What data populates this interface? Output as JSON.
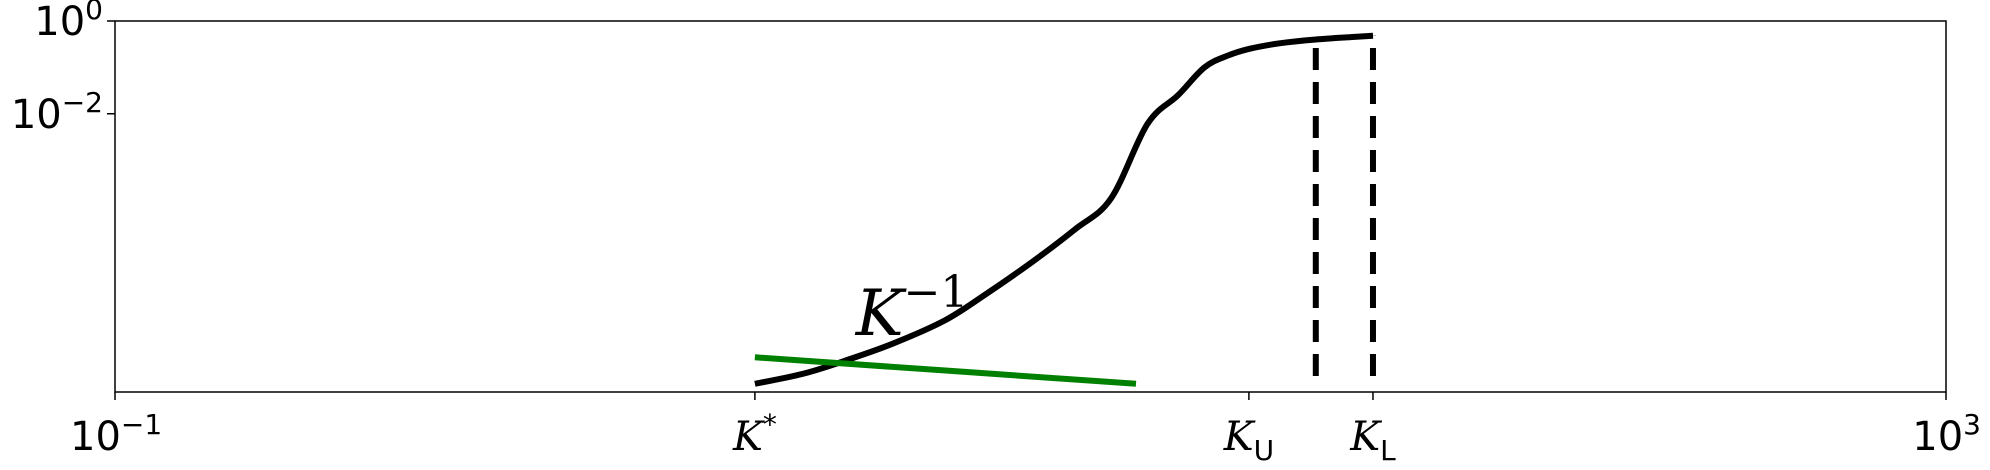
{
  "chart_data": {
    "type": "line",
    "title": "",
    "xlabel": "",
    "ylabel": "",
    "x_scale": "log",
    "y_scale": "log",
    "xlim": [
      0.1,
      1000
    ],
    "ylim": [
      1e-08,
      1
    ],
    "grid": false,
    "x_ticks": [
      {
        "value": 0.1,
        "base": "10",
        "sup": "−1"
      },
      {
        "value": 2.5,
        "base": "K",
        "sup": "*"
      },
      {
        "value": 30,
        "base": "K",
        "sub": "U"
      },
      {
        "value": 56,
        "base": "K",
        "sub": "L"
      },
      {
        "value": 1000,
        "base": "10",
        "sup": "3"
      }
    ],
    "y_ticks": [
      {
        "value": 1,
        "base": "10",
        "sup": "0"
      },
      {
        "value": 0.01,
        "base": "10",
        "sup": "−2"
      }
    ],
    "series": [
      {
        "color": "#000000",
        "style": "solid",
        "x": [
          2.5,
          3.2,
          4.0,
          5.0,
          6.5,
          8.0,
          10.0,
          12.5,
          15.0,
          18.0,
          21.0,
          24.0,
          27.0,
          30.0,
          35.0,
          42.0,
          50.0,
          56.0
        ],
        "y": [
          1.5e-08,
          2.5e-08,
          5e-08,
          1.1e-07,
          3.5e-07,
          1.3e-06,
          6e-06,
          3.2e-05,
          0.00015,
          0.006,
          0.025,
          0.1,
          0.18,
          0.25,
          0.33,
          0.4,
          0.45,
          0.48
        ]
      },
      {
        "color": "#008000",
        "style": "solid",
        "x": [
          2.5,
          17.0
        ],
        "y": [
          5.6e-08,
          1.5e-08
        ]
      }
    ],
    "vlines": [
      {
        "x": 42,
        "y_top": 0.3,
        "style": "dashed",
        "color": "#000000"
      },
      {
        "x": 56,
        "y_top": 0.48,
        "style": "dashed",
        "color": "#000000"
      }
    ],
    "annotations": [
      {
        "text_base": "K",
        "text_sup": "−1",
        "x": 4.5,
        "y": 5e-07
      }
    ]
  }
}
